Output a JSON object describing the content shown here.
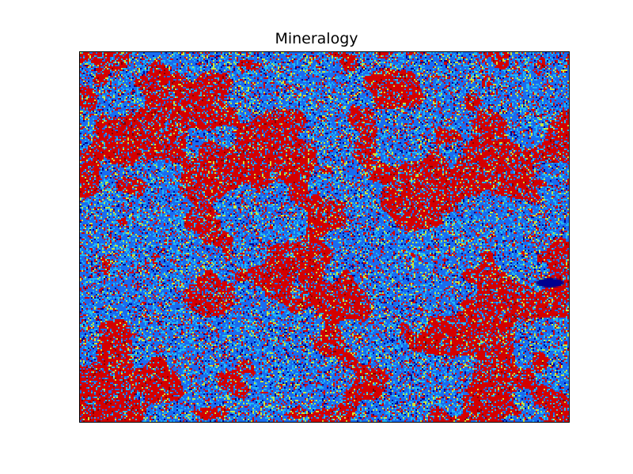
{
  "chart_data": {
    "type": "heatmap",
    "title": "Mineralogy",
    "xlabel": "",
    "ylabel": "",
    "colormap": "jet",
    "axes_ticks_visible": false,
    "grid": false,
    "legend": "none",
    "dominant_classes": [
      {
        "color": "#d40000"
      },
      {
        "color": "#1a6cf0"
      },
      {
        "color": "#1fb8f5"
      },
      {
        "color": "#c8e63c"
      },
      {
        "color": "#00008f"
      }
    ]
  }
}
